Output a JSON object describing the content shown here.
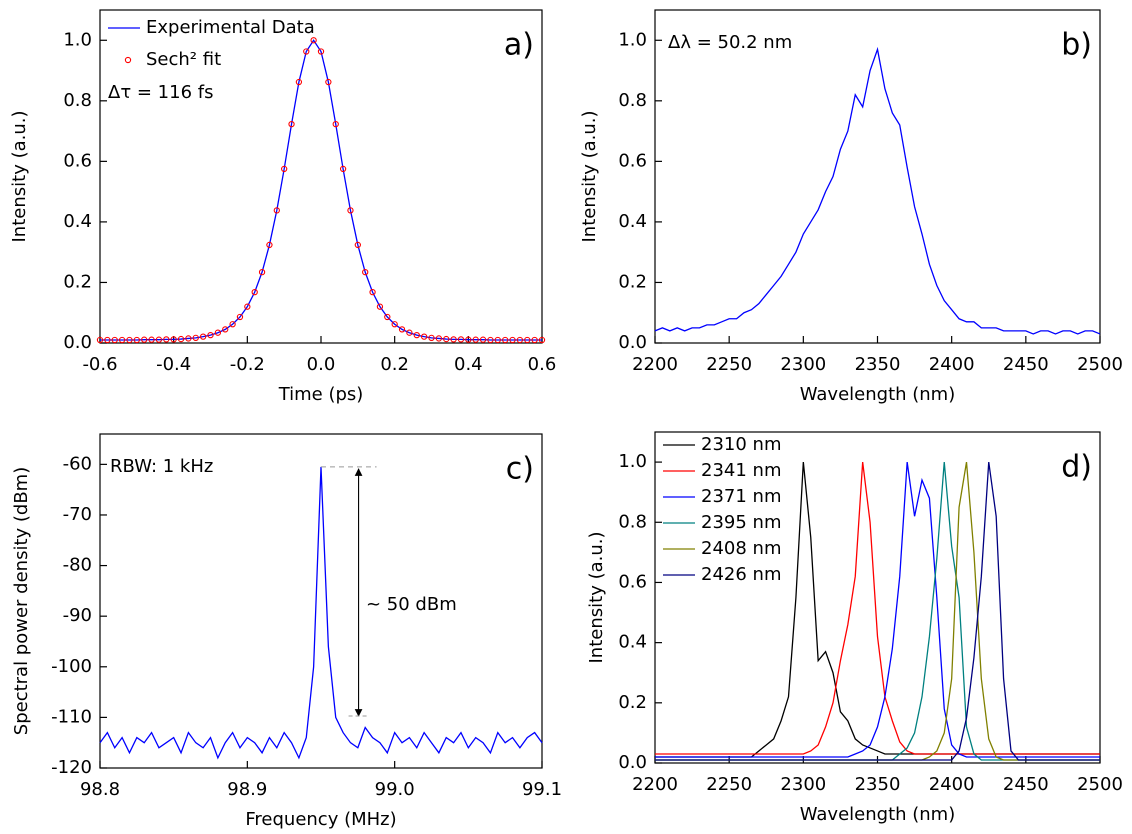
{
  "chart_data": [
    {
      "type": "line",
      "panel_label": "a)",
      "xlabel": "Time (ps)",
      "ylabel": "Intensity (a.u.)",
      "annotations": [
        "Δτ = 116 fs"
      ],
      "legend": "upper left",
      "xlim": [
        -0.6,
        0.6
      ],
      "ylim": [
        0,
        1.1
      ],
      "xticks": [
        -0.6,
        -0.4,
        -0.2,
        {
          "value": 0,
          "label": "0.0"
        },
        0.2,
        0.4,
        0.6
      ],
      "yticks": [
        {
          "value": 0,
          "label": "0.0"
        },
        0.2,
        0.4,
        0.6,
        0.8,
        {
          "value": 1,
          "label": "1.0"
        }
      ],
      "x": [
        -0.6,
        -0.58,
        -0.56,
        -0.54,
        -0.52,
        -0.5,
        -0.48,
        -0.46,
        -0.44,
        -0.42,
        -0.4,
        -0.38,
        -0.36,
        -0.34,
        -0.32,
        -0.3,
        -0.28,
        -0.26,
        -0.24,
        -0.22,
        -0.2,
        -0.18,
        -0.16,
        -0.14,
        -0.12,
        -0.1,
        -0.08,
        -0.06,
        -0.04,
        -0.02,
        0,
        0.02,
        0.04,
        0.06,
        0.08,
        0.1,
        0.12,
        0.14,
        0.16,
        0.18,
        0.2,
        0.22,
        0.24,
        0.26,
        0.28,
        0.3,
        0.32,
        0.34,
        0.36,
        0.38,
        0.4,
        0.42,
        0.44,
        0.46,
        0.48,
        0.5,
        0.52,
        0.54,
        0.56,
        0.58,
        0.6
      ],
      "series": [
        {
          "name": "Experimental Data",
          "color": "#0000ff",
          "values": [
            0.01,
            0.01,
            0.01,
            0.01,
            0.01,
            0.01,
            0.011,
            0.011,
            0.011,
            0.012,
            0.012,
            0.013,
            0.015,
            0.017,
            0.021,
            0.026,
            0.034,
            0.045,
            0.062,
            0.086,
            0.12,
            0.168,
            0.234,
            0.324,
            0.438,
            0.575,
            0.723,
            0.862,
            0.963,
            1.0,
            0.963,
            0.862,
            0.723,
            0.575,
            0.438,
            0.324,
            0.234,
            0.168,
            0.12,
            0.086,
            0.062,
            0.045,
            0.034,
            0.026,
            0.021,
            0.017,
            0.015,
            0.013,
            0.012,
            0.012,
            0.011,
            0.011,
            0.011,
            0.01,
            0.01,
            0.01,
            0.01,
            0.01,
            0.01,
            0.01,
            0.01
          ]
        },
        {
          "name": "Sech² fit",
          "color": "#ff0000",
          "marker": "circle",
          "values": [
            0.01,
            0.01,
            0.01,
            0.01,
            0.01,
            0.01,
            0.011,
            0.011,
            0.011,
            0.012,
            0.012,
            0.013,
            0.015,
            0.017,
            0.021,
            0.026,
            0.034,
            0.045,
            0.062,
            0.086,
            0.12,
            0.168,
            0.234,
            0.324,
            0.438,
            0.575,
            0.723,
            0.862,
            0.963,
            1.0,
            0.963,
            0.862,
            0.723,
            0.575,
            0.438,
            0.324,
            0.234,
            0.168,
            0.12,
            0.086,
            0.062,
            0.045,
            0.034,
            0.026,
            0.021,
            0.017,
            0.015,
            0.013,
            0.012,
            0.012,
            0.011,
            0.011,
            0.011,
            0.01,
            0.01,
            0.01,
            0.01,
            0.01,
            0.01,
            0.01,
            0.01
          ]
        }
      ]
    },
    {
      "type": "line",
      "panel_label": "b)",
      "xlabel": "Wavelength (nm)",
      "ylabel": "Intensity (a.u.)",
      "annotations": [
        "Δλ = 50.2 nm"
      ],
      "xlim": [
        2200,
        2500
      ],
      "ylim": [
        0,
        1.1
      ],
      "xticks": [
        2200,
        2250,
        2300,
        2350,
        2400,
        2450,
        2500
      ],
      "yticks": [
        {
          "value": 0,
          "label": "0.0"
        },
        0.2,
        0.4,
        0.6,
        0.8,
        {
          "value": 1,
          "label": "1.0"
        }
      ],
      "x": [
        2200,
        2205,
        2210,
        2215,
        2220,
        2225,
        2230,
        2235,
        2240,
        2245,
        2250,
        2255,
        2260,
        2265,
        2270,
        2275,
        2280,
        2285,
        2290,
        2295,
        2300,
        2305,
        2310,
        2315,
        2320,
        2325,
        2330,
        2335,
        2340,
        2345,
        2350,
        2355,
        2360,
        2365,
        2370,
        2375,
        2380,
        2385,
        2390,
        2395,
        2400,
        2405,
        2410,
        2415,
        2420,
        2425,
        2430,
        2435,
        2440,
        2445,
        2450,
        2455,
        2460,
        2465,
        2470,
        2475,
        2480,
        2485,
        2490,
        2495,
        2500
      ],
      "series": [
        {
          "color": "#0000ff",
          "values": [
            0.04,
            0.05,
            0.04,
            0.05,
            0.04,
            0.05,
            0.05,
            0.06,
            0.06,
            0.07,
            0.08,
            0.08,
            0.1,
            0.11,
            0.13,
            0.16,
            0.19,
            0.22,
            0.26,
            0.3,
            0.36,
            0.4,
            0.44,
            0.5,
            0.55,
            0.64,
            0.7,
            0.82,
            0.78,
            0.9,
            0.97,
            0.84,
            0.76,
            0.72,
            0.58,
            0.45,
            0.36,
            0.26,
            0.19,
            0.14,
            0.11,
            0.08,
            0.07,
            0.07,
            0.05,
            0.05,
            0.05,
            0.04,
            0.04,
            0.04,
            0.04,
            0.03,
            0.04,
            0.04,
            0.03,
            0.04,
            0.04,
            0.03,
            0.04,
            0.04,
            0.03
          ]
        }
      ]
    },
    {
      "type": "line",
      "panel_label": "c)",
      "xlabel": "Frequency (MHz)",
      "ylabel": "Spectral power density (dBm)",
      "annotations": [
        "RBW: 1 kHz",
        "~ 50 dBm"
      ],
      "xlim": [
        98.8,
        99.1
      ],
      "ylim": [
        -120,
        -54
      ],
      "xticks": [
        98.8,
        98.9,
        {
          "value": 99,
          "label": "99.0"
        },
        99.1
      ],
      "yticks": [
        -120,
        -110,
        -100,
        -90,
        -80,
        -70,
        -60
      ],
      "x": [
        98.8,
        98.805,
        98.81,
        98.815,
        98.82,
        98.825,
        98.83,
        98.835,
        98.84,
        98.845,
        98.85,
        98.855,
        98.86,
        98.865,
        98.87,
        98.875,
        98.88,
        98.885,
        98.89,
        98.895,
        98.9,
        98.905,
        98.91,
        98.915,
        98.92,
        98.925,
        98.93,
        98.935,
        98.94,
        98.945,
        98.95,
        98.955,
        98.96,
        98.965,
        98.97,
        98.975,
        98.98,
        98.985,
        98.99,
        98.995,
        99.0,
        99.005,
        99.01,
        99.015,
        99.02,
        99.025,
        99.03,
        99.035,
        99.04,
        99.045,
        99.05,
        99.055,
        99.06,
        99.065,
        99.07,
        99.075,
        99.08,
        99.085,
        99.09,
        99.095,
        99.1
      ],
      "series": [
        {
          "color": "#0000ff",
          "values": [
            -115,
            -113,
            -116,
            -114,
            -117,
            -114,
            -115,
            -113,
            -116,
            -115,
            -114,
            -117,
            -113,
            -115,
            -116,
            -114,
            -118,
            -115,
            -113,
            -116,
            -114,
            -115,
            -117,
            -114,
            -116,
            -113,
            -115,
            -118,
            -114,
            -100,
            -60.5,
            -96,
            -110,
            -113,
            -115,
            -116,
            -112,
            -114,
            -115,
            -117,
            -113,
            -115,
            -114,
            -116,
            -113,
            -115,
            -117,
            -114,
            -115,
            -113,
            -116,
            -114,
            -115,
            -117,
            -113,
            -115,
            -114,
            -116,
            -114,
            -113,
            -115
          ]
        }
      ]
    },
    {
      "type": "line",
      "panel_label": "d)",
      "xlabel": "Wavelength (nm)",
      "ylabel": "Intensity (a.u.)",
      "legend": "upper left",
      "xlim": [
        2200,
        2500
      ],
      "ylim": [
        0,
        1.1
      ],
      "xticks": [
        2200,
        2250,
        2300,
        2350,
        2400,
        2450,
        2500
      ],
      "yticks": [
        {
          "value": 0,
          "label": "0.0"
        },
        0.2,
        0.4,
        0.6,
        0.8,
        {
          "value": 1,
          "label": "1.0"
        }
      ],
      "x": [
        2200,
        2205,
        2210,
        2215,
        2220,
        2225,
        2230,
        2235,
        2240,
        2245,
        2250,
        2255,
        2260,
        2265,
        2270,
        2275,
        2280,
        2285,
        2290,
        2295,
        2300,
        2305,
        2310,
        2315,
        2320,
        2325,
        2330,
        2335,
        2340,
        2345,
        2350,
        2355,
        2360,
        2365,
        2370,
        2375,
        2380,
        2385,
        2390,
        2395,
        2400,
        2405,
        2410,
        2415,
        2420,
        2425,
        2430,
        2435,
        2440,
        2445,
        2450,
        2455,
        2460,
        2465,
        2470,
        2475,
        2480,
        2485,
        2490,
        2495,
        2500
      ],
      "series": [
        {
          "name": "2310 nm",
          "color": "#000000",
          "values": [
            0.02,
            0.02,
            0.02,
            0.02,
            0.02,
            0.02,
            0.02,
            0.02,
            0.02,
            0.02,
            0.02,
            0.02,
            0.02,
            0.02,
            0.04,
            0.06,
            0.08,
            0.14,
            0.22,
            0.55,
            1.0,
            0.75,
            0.34,
            0.37,
            0.3,
            0.17,
            0.14,
            0.08,
            0.06,
            0.05,
            0.04,
            0.03,
            0.03,
            0.03,
            0.03,
            0.03,
            0.03,
            0.03,
            0.03,
            0.03,
            0.03,
            0.03,
            0.03,
            0.03,
            0.03,
            0.03,
            0.03,
            0.03,
            0.03,
            0.03,
            0.03,
            0.03,
            0.03,
            0.03,
            0.03,
            0.03,
            0.03,
            0.03,
            0.03,
            0.03,
            0.03
          ]
        },
        {
          "name": "2341 nm",
          "color": "#ff0000",
          "values": [
            0.03,
            0.03,
            0.03,
            0.03,
            0.03,
            0.03,
            0.03,
            0.03,
            0.03,
            0.03,
            0.03,
            0.03,
            0.03,
            0.03,
            0.03,
            0.03,
            0.03,
            0.03,
            0.03,
            0.03,
            0.03,
            0.04,
            0.06,
            0.12,
            0.2,
            0.34,
            0.46,
            0.62,
            1.0,
            0.8,
            0.42,
            0.22,
            0.14,
            0.07,
            0.04,
            0.03,
            0.03,
            0.03,
            0.03,
            0.03,
            0.03,
            0.03,
            0.03,
            0.03,
            0.03,
            0.03,
            0.03,
            0.03,
            0.03,
            0.03,
            0.03,
            0.03,
            0.03,
            0.03,
            0.03,
            0.03,
            0.03,
            0.03,
            0.03,
            0.03,
            0.03
          ]
        },
        {
          "name": "2371 nm",
          "color": "#0000ff",
          "values": [
            0.02,
            0.02,
            0.02,
            0.02,
            0.02,
            0.02,
            0.02,
            0.02,
            0.02,
            0.02,
            0.02,
            0.02,
            0.02,
            0.02,
            0.02,
            0.02,
            0.02,
            0.02,
            0.02,
            0.02,
            0.02,
            0.02,
            0.02,
            0.02,
            0.02,
            0.02,
            0.02,
            0.03,
            0.04,
            0.06,
            0.12,
            0.22,
            0.38,
            0.62,
            1.0,
            0.82,
            0.94,
            0.88,
            0.55,
            0.18,
            0.06,
            0.03,
            0.02,
            0.02,
            0.02,
            0.02,
            0.02,
            0.02,
            0.02,
            0.02,
            0.02,
            0.02,
            0.02,
            0.02,
            0.02,
            0.02,
            0.02,
            0.02,
            0.02,
            0.02,
            0.02
          ]
        },
        {
          "name": "2395 nm",
          "color": "#008080",
          "values": [
            0.01,
            0.01,
            0.01,
            0.01,
            0.01,
            0.01,
            0.01,
            0.01,
            0.01,
            0.01,
            0.01,
            0.01,
            0.01,
            0.01,
            0.01,
            0.01,
            0.01,
            0.01,
            0.01,
            0.01,
            0.01,
            0.01,
            0.01,
            0.01,
            0.01,
            0.01,
            0.01,
            0.01,
            0.01,
            0.01,
            0.01,
            0.01,
            0.01,
            0.03,
            0.05,
            0.1,
            0.22,
            0.42,
            0.68,
            1.0,
            0.72,
            0.55,
            0.12,
            0.03,
            0.01,
            0.01,
            0.01,
            0.01,
            0.01,
            0.01,
            0.01,
            0.01,
            0.01,
            0.01,
            0.01,
            0.01,
            0.01,
            0.01,
            0.01,
            0.01,
            0.01
          ]
        },
        {
          "name": "2408 nm",
          "color": "#808000",
          "values": [
            0.01,
            0.01,
            0.01,
            0.01,
            0.01,
            0.01,
            0.01,
            0.01,
            0.01,
            0.01,
            0.01,
            0.01,
            0.01,
            0.01,
            0.01,
            0.01,
            0.01,
            0.01,
            0.01,
            0.01,
            0.01,
            0.01,
            0.01,
            0.01,
            0.01,
            0.01,
            0.01,
            0.01,
            0.01,
            0.01,
            0.01,
            0.01,
            0.01,
            0.01,
            0.01,
            0.01,
            0.01,
            0.02,
            0.04,
            0.1,
            0.28,
            0.85,
            1.0,
            0.7,
            0.28,
            0.08,
            0.02,
            0.01,
            0.01,
            0.01,
            0.01,
            0.01,
            0.01,
            0.01,
            0.01,
            0.01,
            0.01,
            0.01,
            0.01,
            0.01,
            0.01
          ]
        },
        {
          "name": "2426 nm",
          "color": "#000080",
          "values": [
            0.01,
            0.01,
            0.01,
            0.01,
            0.01,
            0.01,
            0.01,
            0.01,
            0.01,
            0.01,
            0.01,
            0.01,
            0.01,
            0.01,
            0.01,
            0.01,
            0.01,
            0.01,
            0.01,
            0.01,
            0.01,
            0.01,
            0.01,
            0.01,
            0.01,
            0.01,
            0.01,
            0.01,
            0.01,
            0.01,
            0.01,
            0.01,
            0.01,
            0.01,
            0.01,
            0.01,
            0.01,
            0.01,
            0.01,
            0.01,
            0.01,
            0.04,
            0.15,
            0.35,
            0.62,
            1.0,
            0.82,
            0.28,
            0.04,
            0.01,
            0.01,
            0.01,
            0.01,
            0.01,
            0.01,
            0.01,
            0.01,
            0.01,
            0.01,
            0.01,
            0.01
          ]
        }
      ]
    }
  ]
}
